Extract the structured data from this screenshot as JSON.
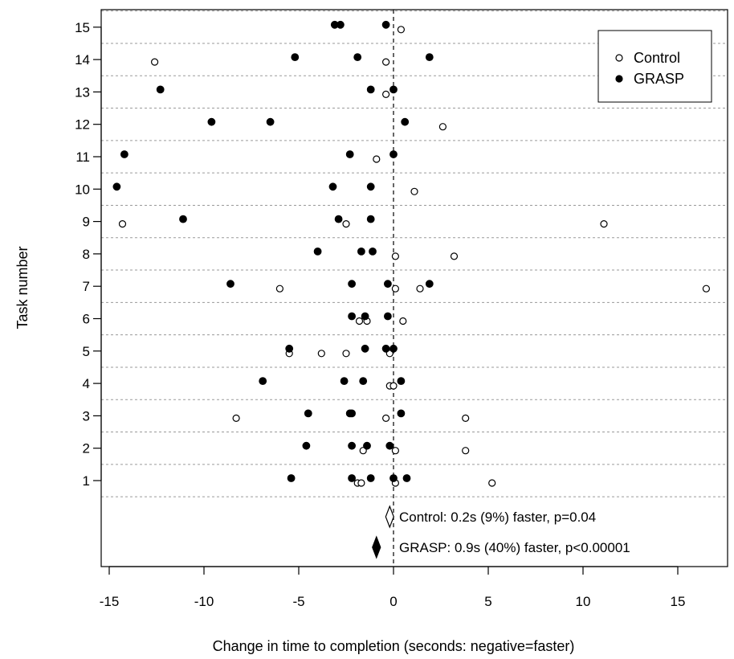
{
  "chart_data": {
    "type": "scatter",
    "xlabel": "Change in time to completion (seconds: negative=faster)",
    "ylabel": "Task number",
    "xlim": [
      -15.5,
      17.5
    ],
    "xticks": [
      -15,
      -10,
      -5,
      0,
      5,
      10,
      15
    ],
    "xtick_labels": [
      "-15",
      "-10",
      "-5",
      "0",
      "5",
      "10",
      "15"
    ],
    "yticks": [
      1,
      2,
      3,
      4,
      5,
      6,
      7,
      8,
      9,
      10,
      11,
      12,
      13,
      14,
      15
    ],
    "ytick_labels": [
      "1",
      "2",
      "3",
      "4",
      "5",
      "6",
      "7",
      "8",
      "9",
      "10",
      "11",
      "12",
      "13",
      "14",
      "15"
    ],
    "grid": "horizontal dashed",
    "reference_line_x": 0,
    "legend_position": "top-right",
    "series": [
      {
        "name": "Control",
        "marker": "open-circle",
        "points": [
          [
            -1.9,
            1
          ],
          [
            -1.7,
            1
          ],
          [
            0.1,
            1
          ],
          [
            5.2,
            1
          ],
          [
            -1.6,
            2
          ],
          [
            0.1,
            2
          ],
          [
            3.8,
            2
          ],
          [
            -8.3,
            3
          ],
          [
            -0.4,
            3
          ],
          [
            3.8,
            3
          ],
          [
            -0.2,
            4
          ],
          [
            0.0,
            4
          ],
          [
            -5.5,
            5
          ],
          [
            -3.8,
            5
          ],
          [
            -2.5,
            5
          ],
          [
            -0.2,
            5
          ],
          [
            -1.8,
            6
          ],
          [
            -1.4,
            6
          ],
          [
            0.5,
            6
          ],
          [
            -6.0,
            7
          ],
          [
            0.1,
            7
          ],
          [
            1.4,
            7
          ],
          [
            16.5,
            7
          ],
          [
            0.1,
            8
          ],
          [
            3.2,
            8
          ],
          [
            -14.3,
            9
          ],
          [
            -2.5,
            9
          ],
          [
            11.1,
            9
          ],
          [
            1.1,
            10
          ],
          [
            -0.9,
            11
          ],
          [
            2.6,
            12
          ],
          [
            -0.4,
            13
          ],
          [
            -12.6,
            14
          ],
          [
            -0.4,
            14
          ],
          [
            0.4,
            15
          ]
        ]
      },
      {
        "name": "GRASP",
        "marker": "filled-circle",
        "points": [
          [
            -5.4,
            1
          ],
          [
            -2.2,
            1
          ],
          [
            -1.2,
            1
          ],
          [
            0.0,
            1
          ],
          [
            0.7,
            1
          ],
          [
            -4.6,
            2
          ],
          [
            -2.2,
            2
          ],
          [
            -1.4,
            2
          ],
          [
            -0.2,
            2
          ],
          [
            -4.5,
            3
          ],
          [
            -2.3,
            3
          ],
          [
            -2.2,
            3
          ],
          [
            0.4,
            3
          ],
          [
            -6.9,
            4
          ],
          [
            -2.6,
            4
          ],
          [
            -1.6,
            4
          ],
          [
            0.4,
            4
          ],
          [
            -5.5,
            5
          ],
          [
            -1.5,
            5
          ],
          [
            -0.4,
            5
          ],
          [
            0.0,
            5
          ],
          [
            -2.2,
            6
          ],
          [
            -1.5,
            6
          ],
          [
            -0.3,
            6
          ],
          [
            -8.6,
            7
          ],
          [
            -2.2,
            7
          ],
          [
            -0.3,
            7
          ],
          [
            1.9,
            7
          ],
          [
            -4.0,
            8
          ],
          [
            -1.7,
            8
          ],
          [
            -1.1,
            8
          ],
          [
            -11.1,
            9
          ],
          [
            -2.9,
            9
          ],
          [
            -1.2,
            9
          ],
          [
            -14.6,
            10
          ],
          [
            -3.2,
            10
          ],
          [
            -1.2,
            10
          ],
          [
            -14.2,
            11
          ],
          [
            -2.3,
            11
          ],
          [
            0.0,
            11
          ],
          [
            -9.6,
            12
          ],
          [
            -6.5,
            12
          ],
          [
            0.6,
            12
          ],
          [
            -12.3,
            13
          ],
          [
            -1.2,
            13
          ],
          [
            0.0,
            13
          ],
          [
            -5.2,
            14
          ],
          [
            -1.9,
            14
          ],
          [
            1.9,
            14
          ],
          [
            -3.1,
            15
          ],
          [
            -2.8,
            15
          ],
          [
            -0.4,
            15
          ]
        ]
      }
    ],
    "summary_estimates": [
      {
        "series": "Control",
        "estimate": -0.2,
        "marker": "open-diamond",
        "label": "Control: 0.2s (9%) faster, p=0.04"
      },
      {
        "series": "GRASP",
        "estimate": -0.9,
        "marker": "filled-diamond",
        "label": "GRASP: 0.9s (40%) faster, p<0.00001"
      }
    ]
  }
}
